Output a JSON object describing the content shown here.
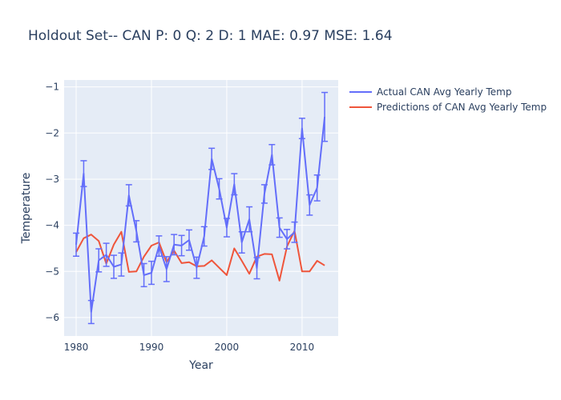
{
  "chart_data": {
    "type": "line",
    "title": "Holdout Set-- CAN P: 0 Q: 2 D: 1 MAE: 0.97 MSE: 1.64",
    "xlabel": "Year",
    "ylabel": "Temperature",
    "xlim": [
      1978.4,
      2014.8
    ],
    "ylim": [
      -6.4,
      -0.85
    ],
    "x_ticks": [
      1980,
      1990,
      2000,
      2010
    ],
    "y_ticks": [
      -6,
      -5,
      -4,
      -3,
      -2,
      -1
    ],
    "grid": true,
    "legend_placement": "top-right",
    "x": [
      1980,
      1981,
      1982,
      1983,
      1984,
      1985,
      1986,
      1987,
      1988,
      1989,
      1990,
      1991,
      1992,
      1993,
      1994,
      1995,
      1996,
      1997,
      1998,
      1999,
      2000,
      2001,
      2002,
      2003,
      2004,
      2005,
      2006,
      2007,
      2008,
      2009,
      2010,
      2011,
      2012,
      2013
    ],
    "series": [
      {
        "name": "Actual CAN Avg Yearly Temp",
        "color": "#636efa",
        "values": [
          -4.42,
          -2.88,
          -5.88,
          -4.76,
          -4.64,
          -4.9,
          -4.85,
          -3.35,
          -4.13,
          -5.08,
          -5.03,
          -4.45,
          -4.95,
          -4.42,
          -4.44,
          -4.32,
          -4.92,
          -4.24,
          -2.56,
          -3.21,
          -4.05,
          -3.11,
          -4.37,
          -3.87,
          -4.93,
          -3.32,
          -2.47,
          -4.05,
          -4.3,
          -4.15,
          -1.9,
          -3.56,
          -3.19,
          -1.65
        ],
        "error": [
          0.25,
          0.28,
          0.25,
          0.25,
          0.25,
          0.25,
          0.25,
          0.23,
          0.23,
          0.25,
          0.25,
          0.22,
          0.27,
          0.22,
          0.22,
          0.22,
          0.23,
          0.21,
          0.23,
          0.22,
          0.2,
          0.23,
          0.23,
          0.27,
          0.23,
          0.2,
          0.22,
          0.21,
          0.21,
          0.22,
          0.22,
          0.22,
          0.28,
          0.53
        ]
      },
      {
        "name": "Predictions of CAN Avg Yearly Temp",
        "color": "#ef553b",
        "values": [
          -4.58,
          -4.28,
          -4.2,
          -4.34,
          -4.83,
          -4.42,
          -4.14,
          -5.01,
          -5.0,
          -4.68,
          -4.44,
          -4.37,
          -4.8,
          -4.55,
          -4.82,
          -4.8,
          -4.89,
          -4.88,
          -4.76,
          -4.92,
          -5.08,
          -4.5,
          -4.77,
          -5.05,
          -4.68,
          -4.62,
          -4.63,
          -5.2,
          -4.46,
          -4.12,
          -5.0,
          -5.0,
          -4.77,
          -4.87
        ]
      }
    ]
  }
}
